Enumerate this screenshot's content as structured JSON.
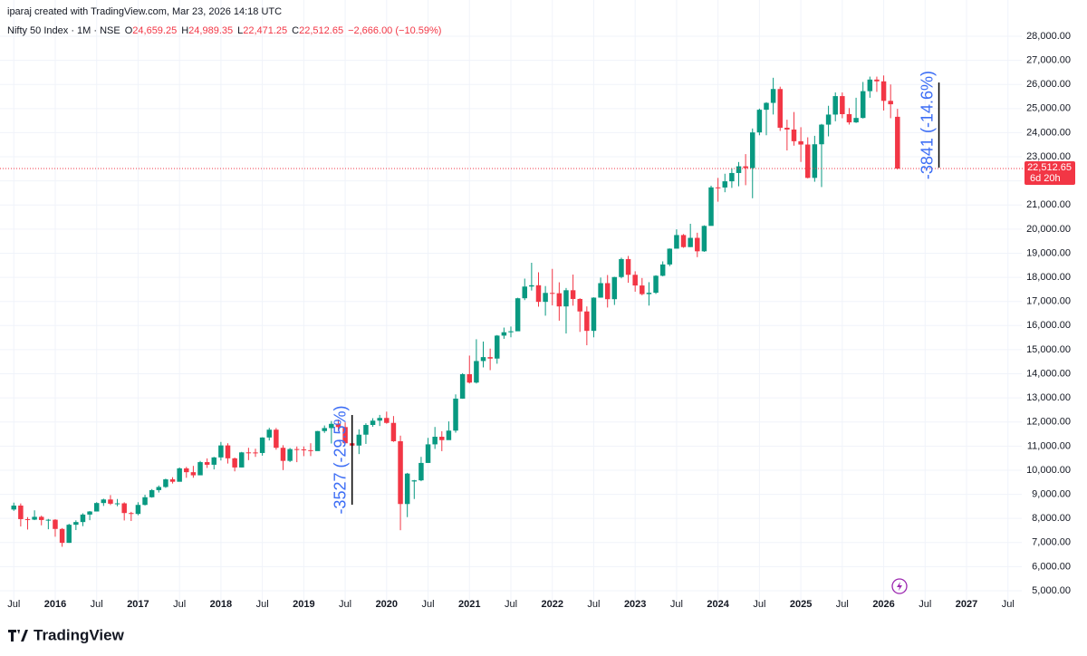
{
  "header": {
    "credit": "iparaj created with TradingView.com, Mar 23, 2026 14:18 UTC",
    "symbol": "Nifty 50 Index · 1M · NSE",
    "open_label": "O",
    "open": "24,659.25",
    "high_label": "H",
    "high": "24,989.35",
    "low_label": "L",
    "low": "22,471.25",
    "close_label": "C",
    "close": "22,512.65",
    "change": "−2,666.00 (−10.59%)"
  },
  "footer": {
    "brand": "TradingView"
  },
  "chart_data": {
    "type": "candlestick",
    "up_color": "#089981",
    "down_color": "#f23645",
    "grid": true,
    "xlim": [
      "2015-05",
      "2027-09"
    ],
    "ylim": [
      5000,
      28000
    ],
    "xticks": [
      {
        "value": "2015-07",
        "label": "Jul"
      },
      {
        "value": "2016-01",
        "label": "2016"
      },
      {
        "value": "2016-07",
        "label": "Jul"
      },
      {
        "value": "2017-01",
        "label": "2017"
      },
      {
        "value": "2017-07",
        "label": "Jul"
      },
      {
        "value": "2018-01",
        "label": "2018"
      },
      {
        "value": "2018-07",
        "label": "Jul"
      },
      {
        "value": "2019-01",
        "label": "2019"
      },
      {
        "value": "2019-07",
        "label": "Jul"
      },
      {
        "value": "2020-01",
        "label": "2020"
      },
      {
        "value": "2020-07",
        "label": "Jul"
      },
      {
        "value": "2021-01",
        "label": "2021"
      },
      {
        "value": "2021-07",
        "label": "Jul"
      },
      {
        "value": "2022-01",
        "label": "2022"
      },
      {
        "value": "2022-07",
        "label": "Jul"
      },
      {
        "value": "2023-01",
        "label": "2023"
      },
      {
        "value": "2023-07",
        "label": "Jul"
      },
      {
        "value": "2024-01",
        "label": "2024"
      },
      {
        "value": "2024-07",
        "label": "Jul"
      },
      {
        "value": "2025-01",
        "label": "2025"
      },
      {
        "value": "2025-07",
        "label": "Jul"
      },
      {
        "value": "2026-01",
        "label": "2026"
      },
      {
        "value": "2026-07",
        "label": "Jul"
      },
      {
        "value": "2027-01",
        "label": "2027"
      },
      {
        "value": "2027-07",
        "label": "Jul"
      }
    ],
    "yticks": [
      {
        "value": 5000,
        "label": "5,000.00"
      },
      {
        "value": 6000,
        "label": "6,000.00"
      },
      {
        "value": 7000,
        "label": "7,000.00"
      },
      {
        "value": 8000,
        "label": "8,000.00"
      },
      {
        "value": 9000,
        "label": "9,000.00"
      },
      {
        "value": 10000,
        "label": "10,000.00"
      },
      {
        "value": 11000,
        "label": "11,000.00"
      },
      {
        "value": 12000,
        "label": "12,000.00"
      },
      {
        "value": 13000,
        "label": "13,000.00"
      },
      {
        "value": 14000,
        "label": "14,000.00"
      },
      {
        "value": 15000,
        "label": "15,000.00"
      },
      {
        "value": 16000,
        "label": "16,000.00"
      },
      {
        "value": 17000,
        "label": "17,000.00"
      },
      {
        "value": 18000,
        "label": "18,000.00"
      },
      {
        "value": 19000,
        "label": "19,000.00"
      },
      {
        "value": 20000,
        "label": "20,000.00"
      },
      {
        "value": 21000,
        "label": "21,000.00"
      },
      {
        "value": 22000,
        "label": "22,000.00"
      },
      {
        "value": 23000,
        "label": "23,000.00"
      },
      {
        "value": 24000,
        "label": "24,000.00"
      },
      {
        "value": 25000,
        "label": "25,000.00"
      },
      {
        "value": 26000,
        "label": "26,000.00"
      },
      {
        "value": 27000,
        "label": "27,000.00"
      },
      {
        "value": 28000,
        "label": "28,000.00"
      }
    ],
    "price_label": {
      "value": "22,512.65",
      "countdown": "6d 20h"
    },
    "annotations": [
      {
        "text": "-3527 (-29.5%)",
        "x": "2019-08",
        "from": 12290,
        "to": 8570
      },
      {
        "text": "-3841 (-14.6%)",
        "x": "2026-09",
        "from": 26080,
        "to": 22550
      }
    ],
    "x": [
      "2015-07",
      "2015-08",
      "2015-09",
      "2015-10",
      "2015-11",
      "2015-12",
      "2016-01",
      "2016-02",
      "2016-03",
      "2016-04",
      "2016-05",
      "2016-06",
      "2016-07",
      "2016-08",
      "2016-09",
      "2016-10",
      "2016-11",
      "2016-12",
      "2017-01",
      "2017-02",
      "2017-03",
      "2017-04",
      "2017-05",
      "2017-06",
      "2017-07",
      "2017-08",
      "2017-09",
      "2017-10",
      "2017-11",
      "2017-12",
      "2018-01",
      "2018-02",
      "2018-03",
      "2018-04",
      "2018-05",
      "2018-06",
      "2018-07",
      "2018-08",
      "2018-09",
      "2018-10",
      "2018-11",
      "2018-12",
      "2019-01",
      "2019-02",
      "2019-03",
      "2019-04",
      "2019-05",
      "2019-06",
      "2019-07",
      "2019-08",
      "2019-09",
      "2019-10",
      "2019-11",
      "2019-12",
      "2020-01",
      "2020-02",
      "2020-03",
      "2020-04",
      "2020-05",
      "2020-06",
      "2020-07",
      "2020-08",
      "2020-09",
      "2020-10",
      "2020-11",
      "2020-12",
      "2021-01",
      "2021-02",
      "2021-03",
      "2021-04",
      "2021-05",
      "2021-06",
      "2021-07",
      "2021-08",
      "2021-09",
      "2021-10",
      "2021-11",
      "2021-12",
      "2022-01",
      "2022-02",
      "2022-03",
      "2022-04",
      "2022-05",
      "2022-06",
      "2022-07",
      "2022-08",
      "2022-09",
      "2022-10",
      "2022-11",
      "2022-12",
      "2023-01",
      "2023-02",
      "2023-03",
      "2023-04",
      "2023-05",
      "2023-06",
      "2023-07",
      "2023-08",
      "2023-09",
      "2023-10",
      "2023-11",
      "2023-12",
      "2024-01",
      "2024-02",
      "2024-03",
      "2024-04",
      "2024-05",
      "2024-06",
      "2024-07",
      "2024-08",
      "2024-09",
      "2024-10",
      "2024-11",
      "2024-12",
      "2025-01",
      "2025-02",
      "2025-03",
      "2025-04",
      "2025-05",
      "2025-06",
      "2025-07",
      "2025-08",
      "2025-09",
      "2025-10",
      "2025-11",
      "2025-12",
      "2026-01",
      "2026-02",
      "2026-03"
    ],
    "candles": [
      [
        8370,
        8655,
        8315,
        8533
      ],
      [
        8533,
        8621,
        7667,
        7971
      ],
      [
        7971,
        8055,
        7540,
        7949
      ],
      [
        7949,
        8336,
        7930,
        8066
      ],
      [
        8066,
        8116,
        7714,
        7935
      ],
      [
        7935,
        7979,
        7551,
        7946
      ],
      [
        7946,
        7972,
        7241,
        7564
      ],
      [
        7564,
        7600,
        6825,
        6987
      ],
      [
        6987,
        7777,
        6985,
        7738
      ],
      [
        7738,
        7922,
        7517,
        7850
      ],
      [
        7850,
        8213,
        7679,
        8160
      ],
      [
        8160,
        8308,
        7927,
        8288
      ],
      [
        8288,
        8674,
        8287,
        8639
      ],
      [
        8639,
        8819,
        8518,
        8786
      ],
      [
        8786,
        8968,
        8555,
        8611
      ],
      [
        8611,
        8806,
        8506,
        8626
      ],
      [
        8626,
        8669,
        7916,
        8224
      ],
      [
        8224,
        8274,
        7893,
        8186
      ],
      [
        8186,
        8672,
        8133,
        8561
      ],
      [
        8561,
        8982,
        8537,
        8879
      ],
      [
        8879,
        9218,
        8860,
        9174
      ],
      [
        9174,
        9367,
        9075,
        9304
      ],
      [
        9304,
        9650,
        9269,
        9621
      ],
      [
        9621,
        9709,
        9448,
        9521
      ],
      [
        9521,
        10115,
        9544,
        10077
      ],
      [
        10077,
        10138,
        9685,
        9918
      ],
      [
        9918,
        10179,
        9687,
        9789
      ],
      [
        9789,
        10384,
        9831,
        10335
      ],
      [
        10335,
        10490,
        10094,
        10227
      ],
      [
        10227,
        10553,
        10033,
        10531
      ],
      [
        10531,
        11172,
        10404,
        11028
      ],
      [
        11028,
        11118,
        10277,
        10493
      ],
      [
        10493,
        10525,
        9952,
        10114
      ],
      [
        10114,
        10759,
        10111,
        10739
      ],
      [
        10739,
        10930,
        10418,
        10736
      ],
      [
        10736,
        10893,
        10551,
        10714
      ],
      [
        10714,
        11366,
        10604,
        11357
      ],
      [
        11357,
        11760,
        11234,
        11681
      ],
      [
        11681,
        11752,
        10850,
        10930
      ],
      [
        10930,
        11036,
        10005,
        10387
      ],
      [
        10387,
        10922,
        10341,
        10877
      ],
      [
        10877,
        10985,
        10334,
        10863
      ],
      [
        10863,
        10987,
        10584,
        10831
      ],
      [
        10831,
        11119,
        10586,
        10793
      ],
      [
        10793,
        11630,
        10817,
        11624
      ],
      [
        11624,
        11856,
        11549,
        11748
      ],
      [
        11748,
        12041,
        11108,
        11923
      ],
      [
        11923,
        12103,
        11625,
        11789
      ],
      [
        11789,
        11982,
        11107,
        11118
      ],
      [
        11118,
        11182,
        10637,
        11023
      ],
      [
        11023,
        11695,
        10670,
        11474
      ],
      [
        11474,
        11946,
        11090,
        11877
      ],
      [
        11877,
        12158,
        11802,
        12056
      ],
      [
        12056,
        12294,
        11833,
        12168
      ],
      [
        12168,
        12430,
        11929,
        11962
      ],
      [
        11962,
        12247,
        11175,
        11202
      ],
      [
        11202,
        11434,
        7511,
        8598
      ],
      [
        8598,
        9889,
        8055,
        9860
      ],
      [
        9533,
        9598,
        8806,
        9580
      ],
      [
        9580,
        10554,
        9544,
        10302
      ],
      [
        10302,
        11341,
        10299,
        11073
      ],
      [
        11073,
        11794,
        10882,
        11388
      ],
      [
        11388,
        11618,
        10790,
        11248
      ],
      [
        11248,
        12025,
        11347,
        11642
      ],
      [
        11642,
        13145,
        11557,
        12969
      ],
      [
        12969,
        14025,
        12962,
        13982
      ],
      [
        13982,
        14754,
        13597,
        13635
      ],
      [
        13635,
        15432,
        13597,
        14529
      ],
      [
        14529,
        15337,
        14265,
        14691
      ],
      [
        14691,
        15044,
        14151,
        14631
      ],
      [
        14631,
        15607,
        14417,
        15583
      ],
      [
        15583,
        15916,
        15450,
        15722
      ],
      [
        15722,
        15962,
        15514,
        15763
      ],
      [
        15763,
        17154,
        15834,
        17132
      ],
      [
        17132,
        17948,
        17055,
        17618
      ],
      [
        17618,
        18604,
        17452,
        17672
      ],
      [
        17672,
        18210,
        16782,
        16983
      ],
      [
        16983,
        17639,
        16410,
        17354
      ],
      [
        17354,
        18351,
        16837,
        17340
      ],
      [
        17340,
        17794,
        16203,
        16794
      ],
      [
        16794,
        17559,
        15671,
        17465
      ],
      [
        17465,
        18115,
        16825,
        17103
      ],
      [
        17103,
        17132,
        15736,
        16585
      ],
      [
        16585,
        16794,
        15183,
        15780
      ],
      [
        15780,
        17172,
        15512,
        17158
      ],
      [
        17158,
        17992,
        17154,
        17759
      ],
      [
        17759,
        18096,
        16748,
        17094
      ],
      [
        17094,
        18022,
        16855,
        18012
      ],
      [
        18012,
        18816,
        17959,
        18758
      ],
      [
        18758,
        18888,
        17774,
        18105
      ],
      [
        18105,
        18251,
        17405,
        17662
      ],
      [
        17662,
        17972,
        17255,
        17304
      ],
      [
        17304,
        17799,
        16828,
        17360
      ],
      [
        17360,
        18089,
        17312,
        18065
      ],
      [
        18065,
        18662,
        18043,
        18534
      ],
      [
        18534,
        19201,
        18464,
        19189
      ],
      [
        19189,
        19991,
        19234,
        19754
      ],
      [
        19754,
        19796,
        19224,
        19254
      ],
      [
        19254,
        20222,
        19255,
        19638
      ],
      [
        19638,
        19850,
        18837,
        19080
      ],
      [
        19080,
        20158,
        19057,
        20133
      ],
      [
        20133,
        21801,
        20183,
        21731
      ],
      [
        21731,
        22124,
        21137,
        21726
      ],
      [
        21726,
        22297,
        21530,
        21983
      ],
      [
        21983,
        22526,
        21710,
        22327
      ],
      [
        22327,
        22783,
        21777,
        22605
      ],
      [
        22605,
        23111,
        21822,
        22531
      ],
      [
        22531,
        24174,
        21281,
        24011
      ],
      [
        24011,
        24999,
        23893,
        24951
      ],
      [
        24951,
        25268,
        23894,
        25236
      ],
      [
        25236,
        26278,
        24754,
        25811
      ],
      [
        25811,
        25908,
        24073,
        24205
      ],
      [
        24205,
        24538,
        23263,
        24131
      ],
      [
        24131,
        24857,
        23461,
        23645
      ],
      [
        23645,
        24227,
        22787,
        23508
      ],
      [
        23508,
        23808,
        22105,
        22125
      ],
      [
        22125,
        23870,
        21965,
        23519
      ],
      [
        23519,
        24365,
        21744,
        24334
      ],
      [
        24334,
        25116,
        23847,
        24751
      ],
      [
        24751,
        25669,
        24474,
        25517
      ],
      [
        25517,
        25669,
        24599,
        24768
      ],
      [
        24768,
        25021,
        24337,
        24427
      ],
      [
        24427,
        25449,
        24404,
        24611
      ],
      [
        24611,
        26104,
        24588,
        25722
      ],
      [
        25722,
        26326,
        25449,
        26203
      ],
      [
        26203,
        26325,
        25693,
        26130
      ],
      [
        26130,
        26373,
        24920,
        25320
      ],
      [
        25320,
        26000,
        24600,
        25178
      ],
      [
        24659.25,
        24989.35,
        22471.25,
        22512.65
      ]
    ]
  }
}
